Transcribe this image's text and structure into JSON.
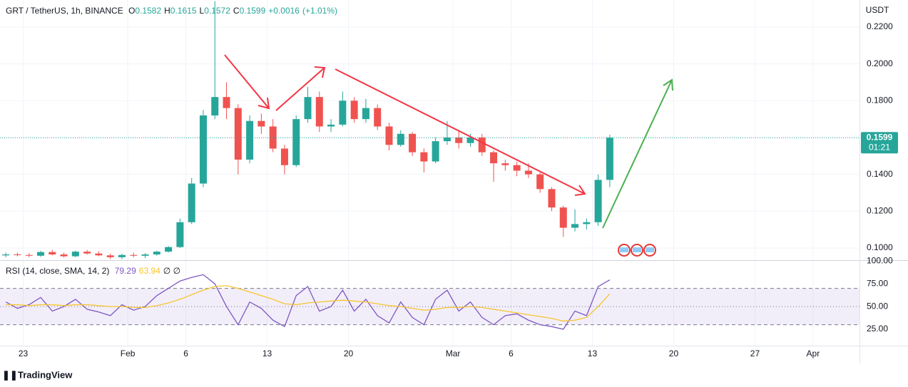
{
  "chart_data": [
    {
      "type": "candlestick",
      "title": "GRT / TetherUS, 1h, BINANCE",
      "ohlc_legend": [
        {
          "label": "O",
          "value": 0.1582
        },
        {
          "label": "H",
          "value": 0.1615
        },
        {
          "label": "L",
          "value": 0.1572
        },
        {
          "label": "C",
          "value": 0.1599
        }
      ],
      "change": {
        "value": 0.0016,
        "label": "+0.0016"
      },
      "change_pct": {
        "value": 1.01,
        "label": "(+1.01%)"
      },
      "currency": "USDT",
      "last_price": 0.1599,
      "countdown": "01:21",
      "up_color": "#26a69a",
      "down_color": "#ef5350",
      "x": [
        "01-21",
        "01-22",
        "01-23",
        "01-24",
        "01-25",
        "01-26",
        "01-27",
        "01-28",
        "01-29",
        "01-30",
        "01-31",
        "02-01",
        "02-02",
        "02-03",
        "02-04",
        "02-05",
        "02-06",
        "02-07",
        "02-08",
        "02-09",
        "02-10",
        "02-11",
        "02-12",
        "02-13",
        "02-14",
        "02-15",
        "02-16",
        "02-17",
        "02-18",
        "02-19",
        "02-20",
        "02-21",
        "02-22",
        "02-23",
        "02-24",
        "02-25",
        "02-26",
        "02-27",
        "02-28",
        "03-01",
        "03-02",
        "03-03",
        "03-04",
        "03-05",
        "03-06",
        "03-07",
        "03-08",
        "03-09",
        "03-10",
        "03-11",
        "03-12",
        "03-13",
        "03-14"
      ],
      "open": [
        0.096,
        0.0965,
        0.0962,
        0.0958,
        0.0978,
        0.0965,
        0.0955,
        0.098,
        0.097,
        0.096,
        0.095,
        0.0962,
        0.0958,
        0.0965,
        0.098,
        0.1005,
        0.114,
        0.135,
        0.172,
        0.182,
        0.176,
        0.148,
        0.169,
        0.166,
        0.154,
        0.145,
        0.17,
        0.182,
        0.166,
        0.167,
        0.18,
        0.17,
        0.176,
        0.166,
        0.156,
        0.162,
        0.152,
        0.147,
        0.158,
        0.16,
        0.157,
        0.16,
        0.152,
        0.146,
        0.145,
        0.142,
        0.14,
        0.132,
        0.122,
        0.111,
        0.113,
        0.114,
        0.137
      ],
      "high": [
        0.0975,
        0.0975,
        0.0972,
        0.0985,
        0.099,
        0.0975,
        0.0985,
        0.099,
        0.0982,
        0.097,
        0.0968,
        0.0975,
        0.0972,
        0.0985,
        0.101,
        0.116,
        0.138,
        0.175,
        0.234,
        0.19,
        0.178,
        0.172,
        0.173,
        0.17,
        0.156,
        0.172,
        0.1875,
        0.185,
        0.17,
        0.185,
        0.182,
        0.181,
        0.178,
        0.168,
        0.164,
        0.163,
        0.154,
        0.16,
        0.169,
        0.164,
        0.162,
        0.162,
        0.153,
        0.148,
        0.147,
        0.146,
        0.141,
        0.133,
        0.123,
        0.121,
        0.116,
        0.14,
        0.1615
      ],
      "low": [
        0.095,
        0.0955,
        0.095,
        0.0952,
        0.096,
        0.0948,
        0.095,
        0.0965,
        0.0955,
        0.094,
        0.094,
        0.095,
        0.0945,
        0.0958,
        0.0975,
        0.1,
        0.113,
        0.133,
        0.17,
        0.17,
        0.14,
        0.146,
        0.162,
        0.152,
        0.14,
        0.144,
        0.168,
        0.163,
        0.163,
        0.166,
        0.168,
        0.168,
        0.164,
        0.153,
        0.155,
        0.15,
        0.141,
        0.146,
        0.156,
        0.154,
        0.155,
        0.15,
        0.136,
        0.142,
        0.139,
        0.138,
        0.13,
        0.12,
        0.106,
        0.109,
        0.11,
        0.112,
        0.133
      ],
      "close": [
        0.0965,
        0.0962,
        0.0958,
        0.0978,
        0.0965,
        0.0955,
        0.098,
        0.097,
        0.096,
        0.095,
        0.0962,
        0.0958,
        0.0965,
        0.098,
        0.1005,
        0.114,
        0.135,
        0.172,
        0.182,
        0.176,
        0.148,
        0.169,
        0.166,
        0.154,
        0.145,
        0.17,
        0.182,
        0.166,
        0.167,
        0.18,
        0.17,
        0.176,
        0.166,
        0.156,
        0.162,
        0.152,
        0.147,
        0.158,
        0.16,
        0.157,
        0.16,
        0.152,
        0.146,
        0.145,
        0.142,
        0.14,
        0.132,
        0.122,
        0.111,
        0.113,
        0.114,
        0.137,
        0.1599
      ],
      "xlim": [
        "01-21",
        "04-05"
      ],
      "xticks": [
        {
          "value": "01-23",
          "label": "23"
        },
        {
          "value": "02-01",
          "label": "Feb"
        },
        {
          "value": "02-06",
          "label": "6"
        },
        {
          "value": "02-13",
          "label": "13"
        },
        {
          "value": "02-20",
          "label": "20"
        },
        {
          "value": "03-01",
          "label": "Mar"
        },
        {
          "value": "03-06",
          "label": "6"
        },
        {
          "value": "03-13",
          "label": "13"
        },
        {
          "value": "03-20",
          "label": "20"
        },
        {
          "value": "03-27",
          "label": "27"
        },
        {
          "value": "04-01",
          "label": "Apr"
        }
      ],
      "ylim": [
        0.0934,
        0.2347
      ],
      "yticks": [
        {
          "value": 0.1,
          "label": "0.1000"
        },
        {
          "value": 0.12,
          "label": "0.1200"
        },
        {
          "value": 0.14,
          "label": "0.1400"
        },
        {
          "value": 0.16,
          "label": "0.1600"
        },
        {
          "value": 0.18,
          "label": "0.1800"
        },
        {
          "value": 0.2,
          "label": "0.2000"
        },
        {
          "value": 0.22,
          "label": "0.2200"
        }
      ],
      "grid": true
    },
    {
      "type": "line",
      "title": "RSI (14, close, SMA, 14, 2)",
      "extra": "∅ ∅",
      "series": [
        {
          "color": "#7e57c2",
          "values": [
            55,
            48,
            52,
            60,
            45,
            50,
            58,
            47,
            44,
            40,
            52,
            46,
            50,
            62,
            70,
            78,
            82,
            85,
            75,
            50,
            30,
            55,
            48,
            35,
            28,
            62,
            72,
            45,
            50,
            68,
            45,
            58,
            40,
            32,
            55,
            38,
            30,
            58,
            68,
            45,
            55,
            38,
            30,
            40,
            42,
            35,
            30,
            28,
            25,
            45,
            40,
            72,
            79.29
          ]
        },
        {
          "color": "#f7c531",
          "values": [
            52,
            52,
            51,
            52,
            52,
            51,
            52,
            52,
            51,
            50,
            50,
            49,
            49,
            51,
            54,
            58,
            63,
            68,
            72,
            73,
            70,
            66,
            62,
            58,
            53,
            52,
            54,
            55,
            56,
            57,
            56,
            55,
            53,
            51,
            50,
            48,
            46,
            47,
            49,
            49,
            50,
            49,
            47,
            45,
            43,
            41,
            39,
            37,
            34,
            35,
            38,
            50,
            63.94
          ]
        }
      ],
      "levels": [
        70,
        50,
        30
      ],
      "ylim": [
        7,
        101
      ],
      "yticks": [
        {
          "value": 100,
          "label": "100.00"
        },
        {
          "value": 75,
          "label": "75.00"
        },
        {
          "value": 50,
          "label": "50.00"
        },
        {
          "value": 25,
          "label": "25.00"
        }
      ]
    }
  ],
  "brand": "TradingView"
}
